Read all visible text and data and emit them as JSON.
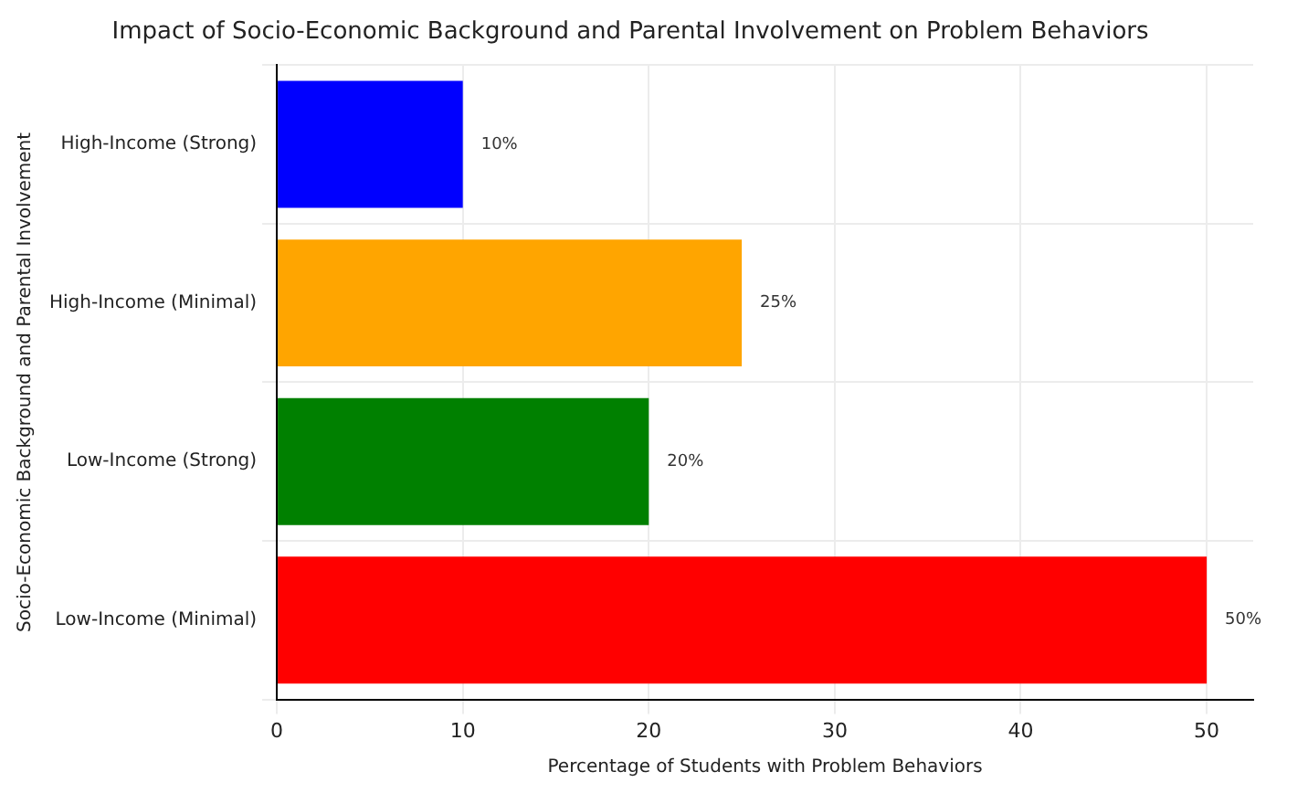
{
  "chart_data": {
    "type": "bar",
    "orientation": "horizontal",
    "title": "Impact of Socio-Economic Background and Parental Involvement on Problem Behaviors",
    "xlabel": "Percentage of Students with Problem Behaviors",
    "ylabel": "Socio-Economic Background and Parental Involvement",
    "categories": [
      "High-Income (Strong)",
      "High-Income (Minimal)",
      "Low-Income (Strong)",
      "Low-Income (Minimal)"
    ],
    "values": [
      10,
      25,
      20,
      50
    ],
    "colors": [
      "#0000ff",
      "#ffa500",
      "#008000",
      "#ff0000"
    ],
    "value_labels": [
      "10%",
      "25%",
      "20%",
      "50%"
    ],
    "xlim": [
      0,
      52.5
    ],
    "xticks": [
      0,
      10,
      20,
      30,
      40,
      50
    ],
    "grid": true
  }
}
